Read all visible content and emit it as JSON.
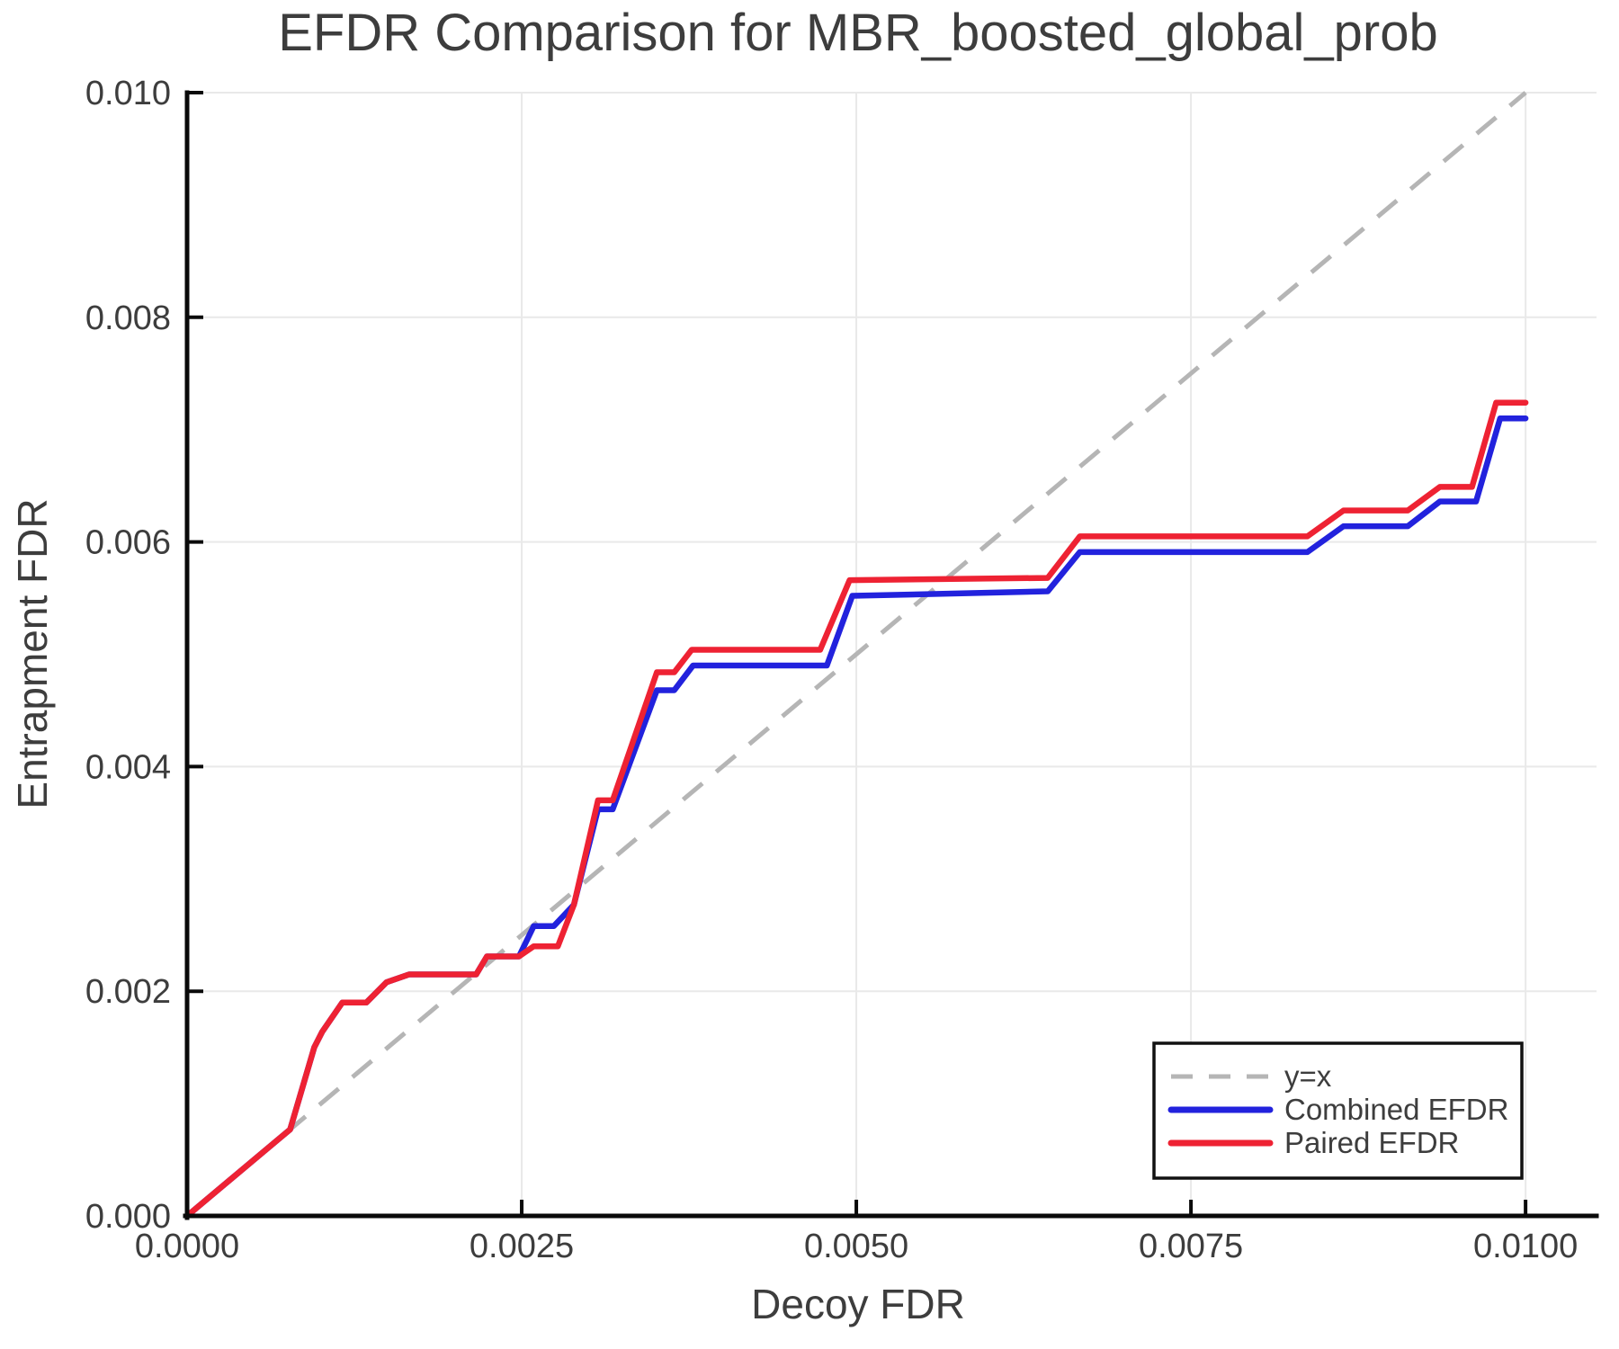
{
  "chart_data": {
    "type": "line",
    "title": "EFDR Comparison for MBR_boosted_global_prob",
    "xlabel": "Decoy FDR",
    "ylabel": "Entrapment FDR",
    "xlim": [
      0.0,
      0.01053
    ],
    "ylim": [
      0.0,
      0.01
    ],
    "grid": true,
    "x_ticks": {
      "values": [
        0.0,
        0.0025,
        0.005,
        0.0075,
        0.01
      ],
      "labels": [
        "0.0000",
        "0.0025",
        "0.0050",
        "0.0075",
        "0.0100"
      ]
    },
    "y_ticks": {
      "values": [
        0.0,
        0.002,
        0.004,
        0.006,
        0.008,
        0.01
      ],
      "labels": [
        "0.000",
        "0.002",
        "0.004",
        "0.006",
        "0.008",
        "0.010"
      ]
    },
    "reference_line": {
      "label": "y=x",
      "from": [
        0.0,
        0.0
      ],
      "to": [
        0.01,
        0.01
      ],
      "color": "#b5b5b5",
      "style": "dashed"
    },
    "series": [
      {
        "name": "Combined EFDR",
        "color": "#2222dd",
        "points": [
          [
            0.0,
            0.0
          ],
          [
            0.00077,
            0.00077
          ],
          [
            0.00095,
            0.0015
          ],
          [
            0.00101,
            0.00164
          ],
          [
            0.00116,
            0.0019
          ],
          [
            0.00134,
            0.0019
          ],
          [
            0.00149,
            0.00208
          ],
          [
            0.00166,
            0.00215
          ],
          [
            0.00216,
            0.00215
          ],
          [
            0.00224,
            0.00231
          ],
          [
            0.00248,
            0.00231
          ],
          [
            0.00259,
            0.00258
          ],
          [
            0.00274,
            0.00258
          ],
          [
            0.00289,
            0.00277
          ],
          [
            0.00307,
            0.00362
          ],
          [
            0.00318,
            0.00362
          ],
          [
            0.00351,
            0.00468
          ],
          [
            0.00364,
            0.00468
          ],
          [
            0.00378,
            0.0049
          ],
          [
            0.00478,
            0.0049
          ],
          [
            0.00497,
            0.00552
          ],
          [
            0.00643,
            0.00556
          ],
          [
            0.00667,
            0.00591
          ],
          [
            0.00837,
            0.00591
          ],
          [
            0.00864,
            0.00614
          ],
          [
            0.00912,
            0.00614
          ],
          [
            0.00936,
            0.00636
          ],
          [
            0.00963,
            0.00636
          ],
          [
            0.00981,
            0.0071
          ],
          [
            0.01,
            0.0071
          ]
        ]
      },
      {
        "name": "Paired EFDR",
        "color": "#ee2233",
        "points": [
          [
            0.0,
            0.0
          ],
          [
            0.00077,
            0.00077
          ],
          [
            0.00095,
            0.0015
          ],
          [
            0.00101,
            0.00164
          ],
          [
            0.00116,
            0.0019
          ],
          [
            0.00134,
            0.0019
          ],
          [
            0.00149,
            0.00208
          ],
          [
            0.00166,
            0.00215
          ],
          [
            0.00216,
            0.00215
          ],
          [
            0.00224,
            0.00231
          ],
          [
            0.00248,
            0.00231
          ],
          [
            0.00259,
            0.0024
          ],
          [
            0.00277,
            0.0024
          ],
          [
            0.00289,
            0.00277
          ],
          [
            0.00307,
            0.0037
          ],
          [
            0.00318,
            0.0037
          ],
          [
            0.00351,
            0.00484
          ],
          [
            0.00364,
            0.00484
          ],
          [
            0.00377,
            0.00504
          ],
          [
            0.00473,
            0.00504
          ],
          [
            0.00495,
            0.00566
          ],
          [
            0.00643,
            0.00568
          ],
          [
            0.00667,
            0.00605
          ],
          [
            0.00837,
            0.00605
          ],
          [
            0.00864,
            0.00628
          ],
          [
            0.00912,
            0.00628
          ],
          [
            0.00936,
            0.00649
          ],
          [
            0.0096,
            0.00649
          ],
          [
            0.00978,
            0.00724
          ],
          [
            0.01,
            0.00724
          ]
        ]
      }
    ],
    "legend": {
      "position": "bottom-right",
      "entries": [
        "y=x",
        "Combined EFDR",
        "Paired EFDR"
      ]
    }
  },
  "style_colors": {
    "grid": "#e9e9e9",
    "spine": "#0a0a0a",
    "text": "#3d3d3d"
  }
}
